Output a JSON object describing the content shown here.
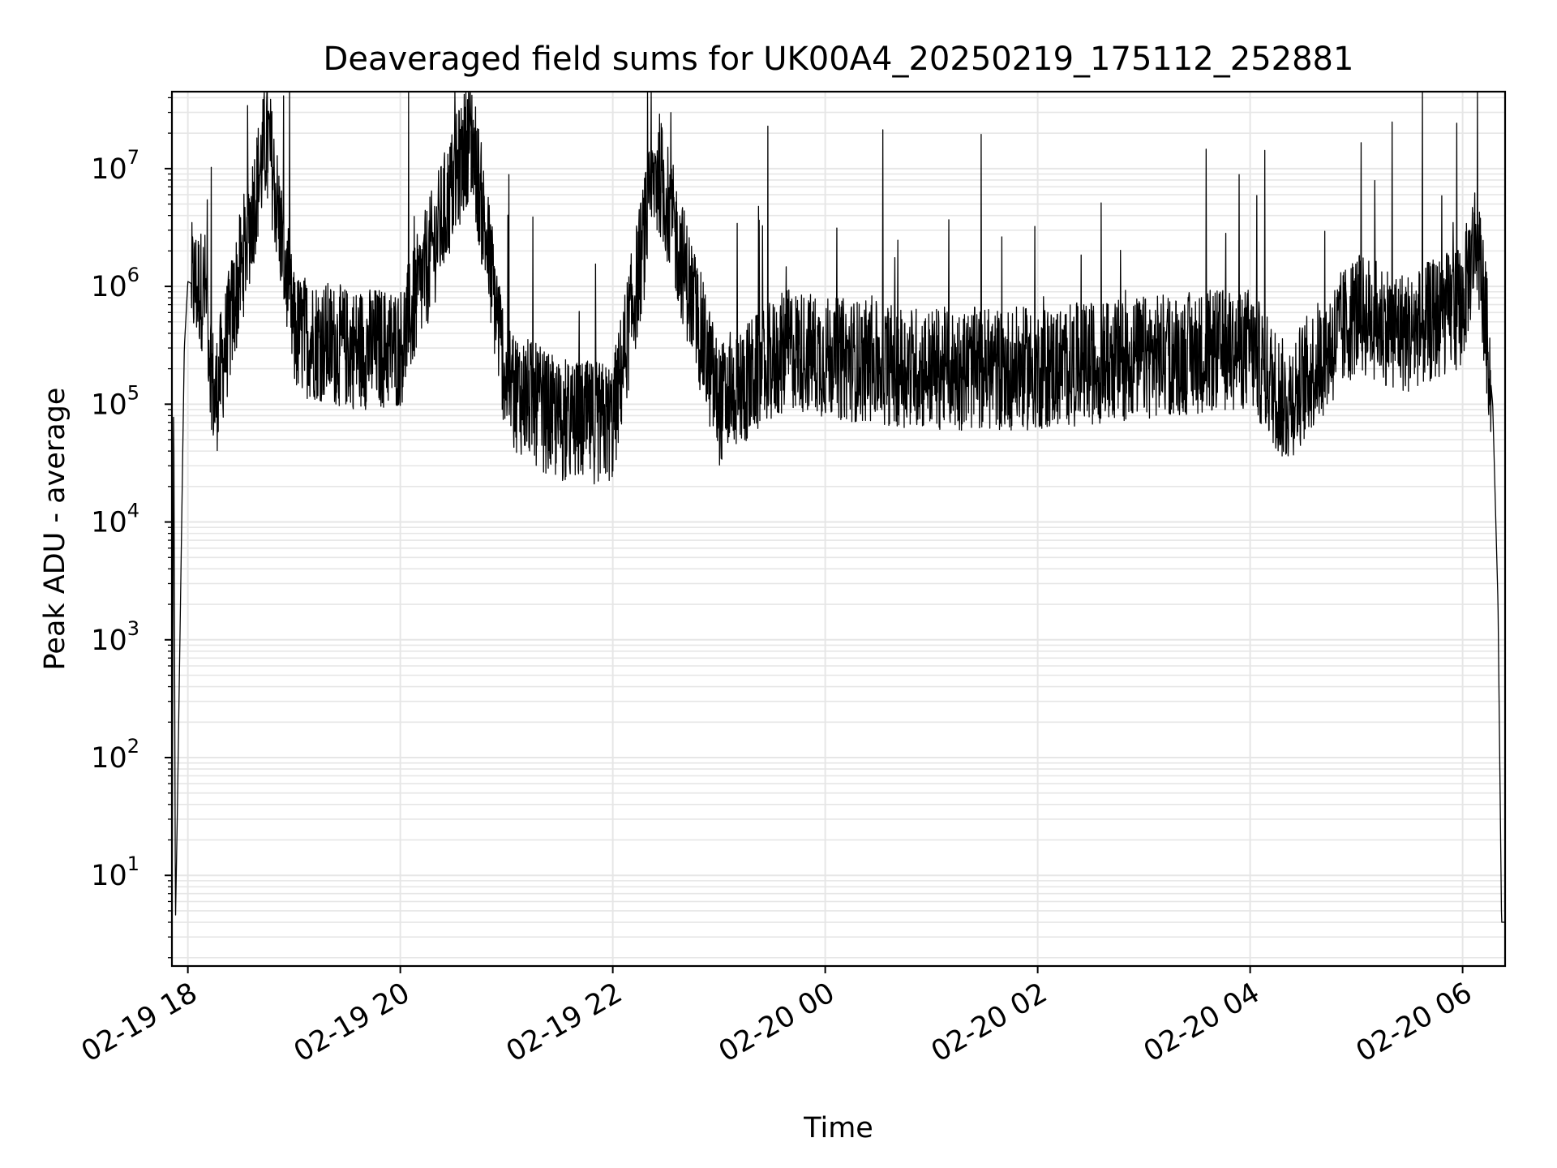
{
  "chart_data": {
    "type": "line",
    "title": "Deaveraged field sums for UK00A4_20250219_175112_252881",
    "xlabel": "Time",
    "ylabel": "Peak ADU - average",
    "y_scale": "log",
    "ylim": [
      1.7,
      45000000
    ],
    "xlim": [
      "2025-02-19 17:51",
      "2025-02-20 06:24"
    ],
    "grid": true,
    "line_color": "#000000",
    "grid_color": "#e6e6e6",
    "x_ticks": [
      {
        "label": "02-19 18",
        "value": "2025-02-19 18:00"
      },
      {
        "label": "02-19 20",
        "value": "2025-02-19 20:00"
      },
      {
        "label": "02-19 22",
        "value": "2025-02-19 22:00"
      },
      {
        "label": "02-20 00",
        "value": "2025-02-20 00:00"
      },
      {
        "label": "02-20 02",
        "value": "2025-02-20 02:00"
      },
      {
        "label": "02-20 04",
        "value": "2025-02-20 04:00"
      },
      {
        "label": "02-20 06",
        "value": "2025-02-20 06:00"
      }
    ],
    "y_ticks": [
      {
        "base": "10",
        "exp": "1",
        "value": 10
      },
      {
        "base": "10",
        "exp": "2",
        "value": 100
      },
      {
        "base": "10",
        "exp": "3",
        "value": 1000
      },
      {
        "base": "10",
        "exp": "4",
        "value": 10000
      },
      {
        "base": "10",
        "exp": "5",
        "value": 100000
      },
      {
        "base": "10",
        "exp": "6",
        "value": 1000000
      },
      {
        "base": "10",
        "exp": "7",
        "value": 10000000
      }
    ],
    "series": [
      {
        "values_approx": [
          {
            "x": "2025-02-19 17:51",
            "y": 2
          },
          {
            "x": "2025-02-19 17:52",
            "y": 150000
          },
          {
            "x": "2025-02-19 17:53",
            "y": 4
          },
          {
            "x": "2025-02-19 17:54",
            "y": 30
          },
          {
            "x": "2025-02-19 17:55",
            "y": 300
          },
          {
            "x": "2025-02-19 17:58",
            "y": 300000
          },
          {
            "x": "2025-02-19 18:00",
            "y": 1100000
          },
          {
            "x": "2025-02-19 18:10",
            "y": 900000
          },
          {
            "x": "2025-02-19 18:15",
            "y": 100000
          },
          {
            "x": "2025-02-19 18:45",
            "y": 20000000
          },
          {
            "x": "2025-02-19 19:00",
            "y": 400000
          },
          {
            "x": "2025-02-19 19:30",
            "y": 300000
          },
          {
            "x": "2025-02-19 20:00",
            "y": 300000
          },
          {
            "x": "2025-02-19 20:40",
            "y": 21000000
          },
          {
            "x": "2025-02-19 21:00",
            "y": 150000
          },
          {
            "x": "2025-02-19 21:30",
            "y": 70000
          },
          {
            "x": "2025-02-19 22:00",
            "y": 70000
          },
          {
            "x": "2025-02-19 22:25",
            "y": 11000000
          },
          {
            "x": "2025-02-19 23:00",
            "y": 100000
          },
          {
            "x": "2025-02-19 23:40",
            "y": 300000
          },
          {
            "x": "2025-02-20 00:00",
            "y": 250000
          },
          {
            "x": "2025-02-20 01:00",
            "y": 200000
          },
          {
            "x": "2025-02-20 02:00",
            "y": 200000
          },
          {
            "x": "2025-02-20 03:00",
            "y": 250000
          },
          {
            "x": "2025-02-20 04:00",
            "y": 300000
          },
          {
            "x": "2025-02-20 04:20",
            "y": 100000
          },
          {
            "x": "2025-02-20 05:00",
            "y": 600000
          },
          {
            "x": "2025-02-20 05:30",
            "y": 400000
          },
          {
            "x": "2025-02-20 06:00",
            "y": 700000
          },
          {
            "x": "2025-02-20 06:08",
            "y": 3000000
          },
          {
            "x": "2025-02-20 06:13",
            "y": 500000
          },
          {
            "x": "2025-02-20 06:17",
            "y": 100000
          },
          {
            "x": "2025-02-20 06:20",
            "y": 2000
          },
          {
            "x": "2025-02-20 06:22",
            "y": 4
          },
          {
            "x": "2025-02-20 06:24",
            "y": 4
          }
        ]
      }
    ]
  }
}
